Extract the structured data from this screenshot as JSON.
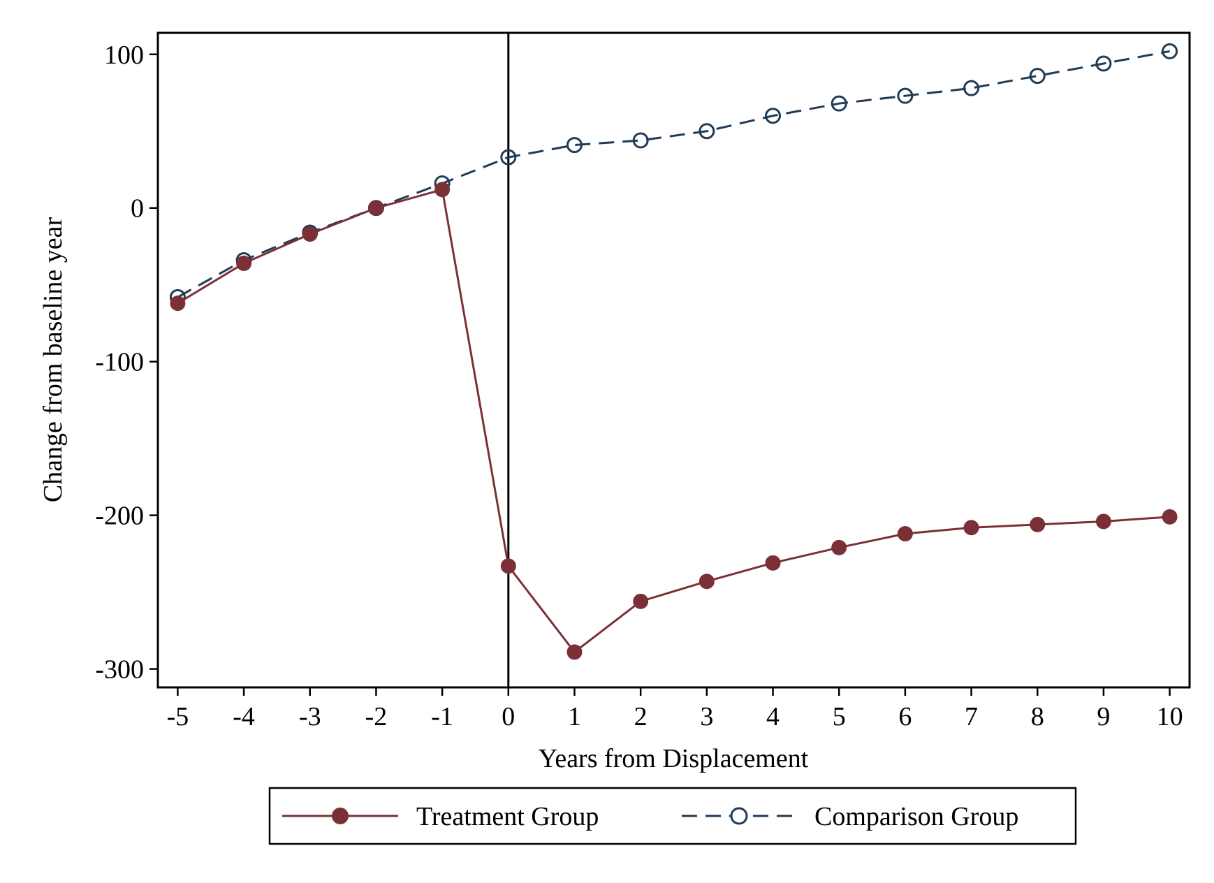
{
  "chart_data": {
    "type": "line",
    "title": "",
    "xlabel": "Years from Displacement",
    "ylabel": "Change from baseline year",
    "x": [
      -5,
      -4,
      -3,
      -2,
      -1,
      0,
      1,
      2,
      3,
      4,
      5,
      6,
      7,
      8,
      9,
      10
    ],
    "x_ticks": [
      "-5",
      "-4",
      "-3",
      "-2",
      "-1",
      "0",
      "1",
      "2",
      "3",
      "4",
      "5",
      "6",
      "7",
      "8",
      "9",
      "10"
    ],
    "y_ticks": [
      "100",
      "0",
      "-100",
      "-200",
      "-300"
    ],
    "y_tick_values": [
      100,
      0,
      -100,
      -200,
      -300
    ],
    "xlim": [
      -5.3,
      10.3
    ],
    "ylim": [
      -312,
      114
    ],
    "vertical_reference_line": 0,
    "grid": false,
    "legend_position": "bottom",
    "series": [
      {
        "name": "Treatment Group",
        "color": "#7b3036",
        "line_style": "solid",
        "marker": "filled-circle",
        "values": [
          -62,
          -36,
          -17,
          0,
          12,
          -233,
          -289,
          -256,
          -243,
          -231,
          -221,
          -212,
          -208,
          -206,
          -204,
          -201
        ]
      },
      {
        "name": "Comparison Group",
        "color": "#1f3b57",
        "line_style": "dashed",
        "marker": "hollow-circle",
        "values": [
          -58,
          -34,
          -16,
          0,
          16,
          33,
          41,
          44,
          50,
          60,
          68,
          73,
          78,
          86,
          94,
          102
        ]
      }
    ]
  }
}
